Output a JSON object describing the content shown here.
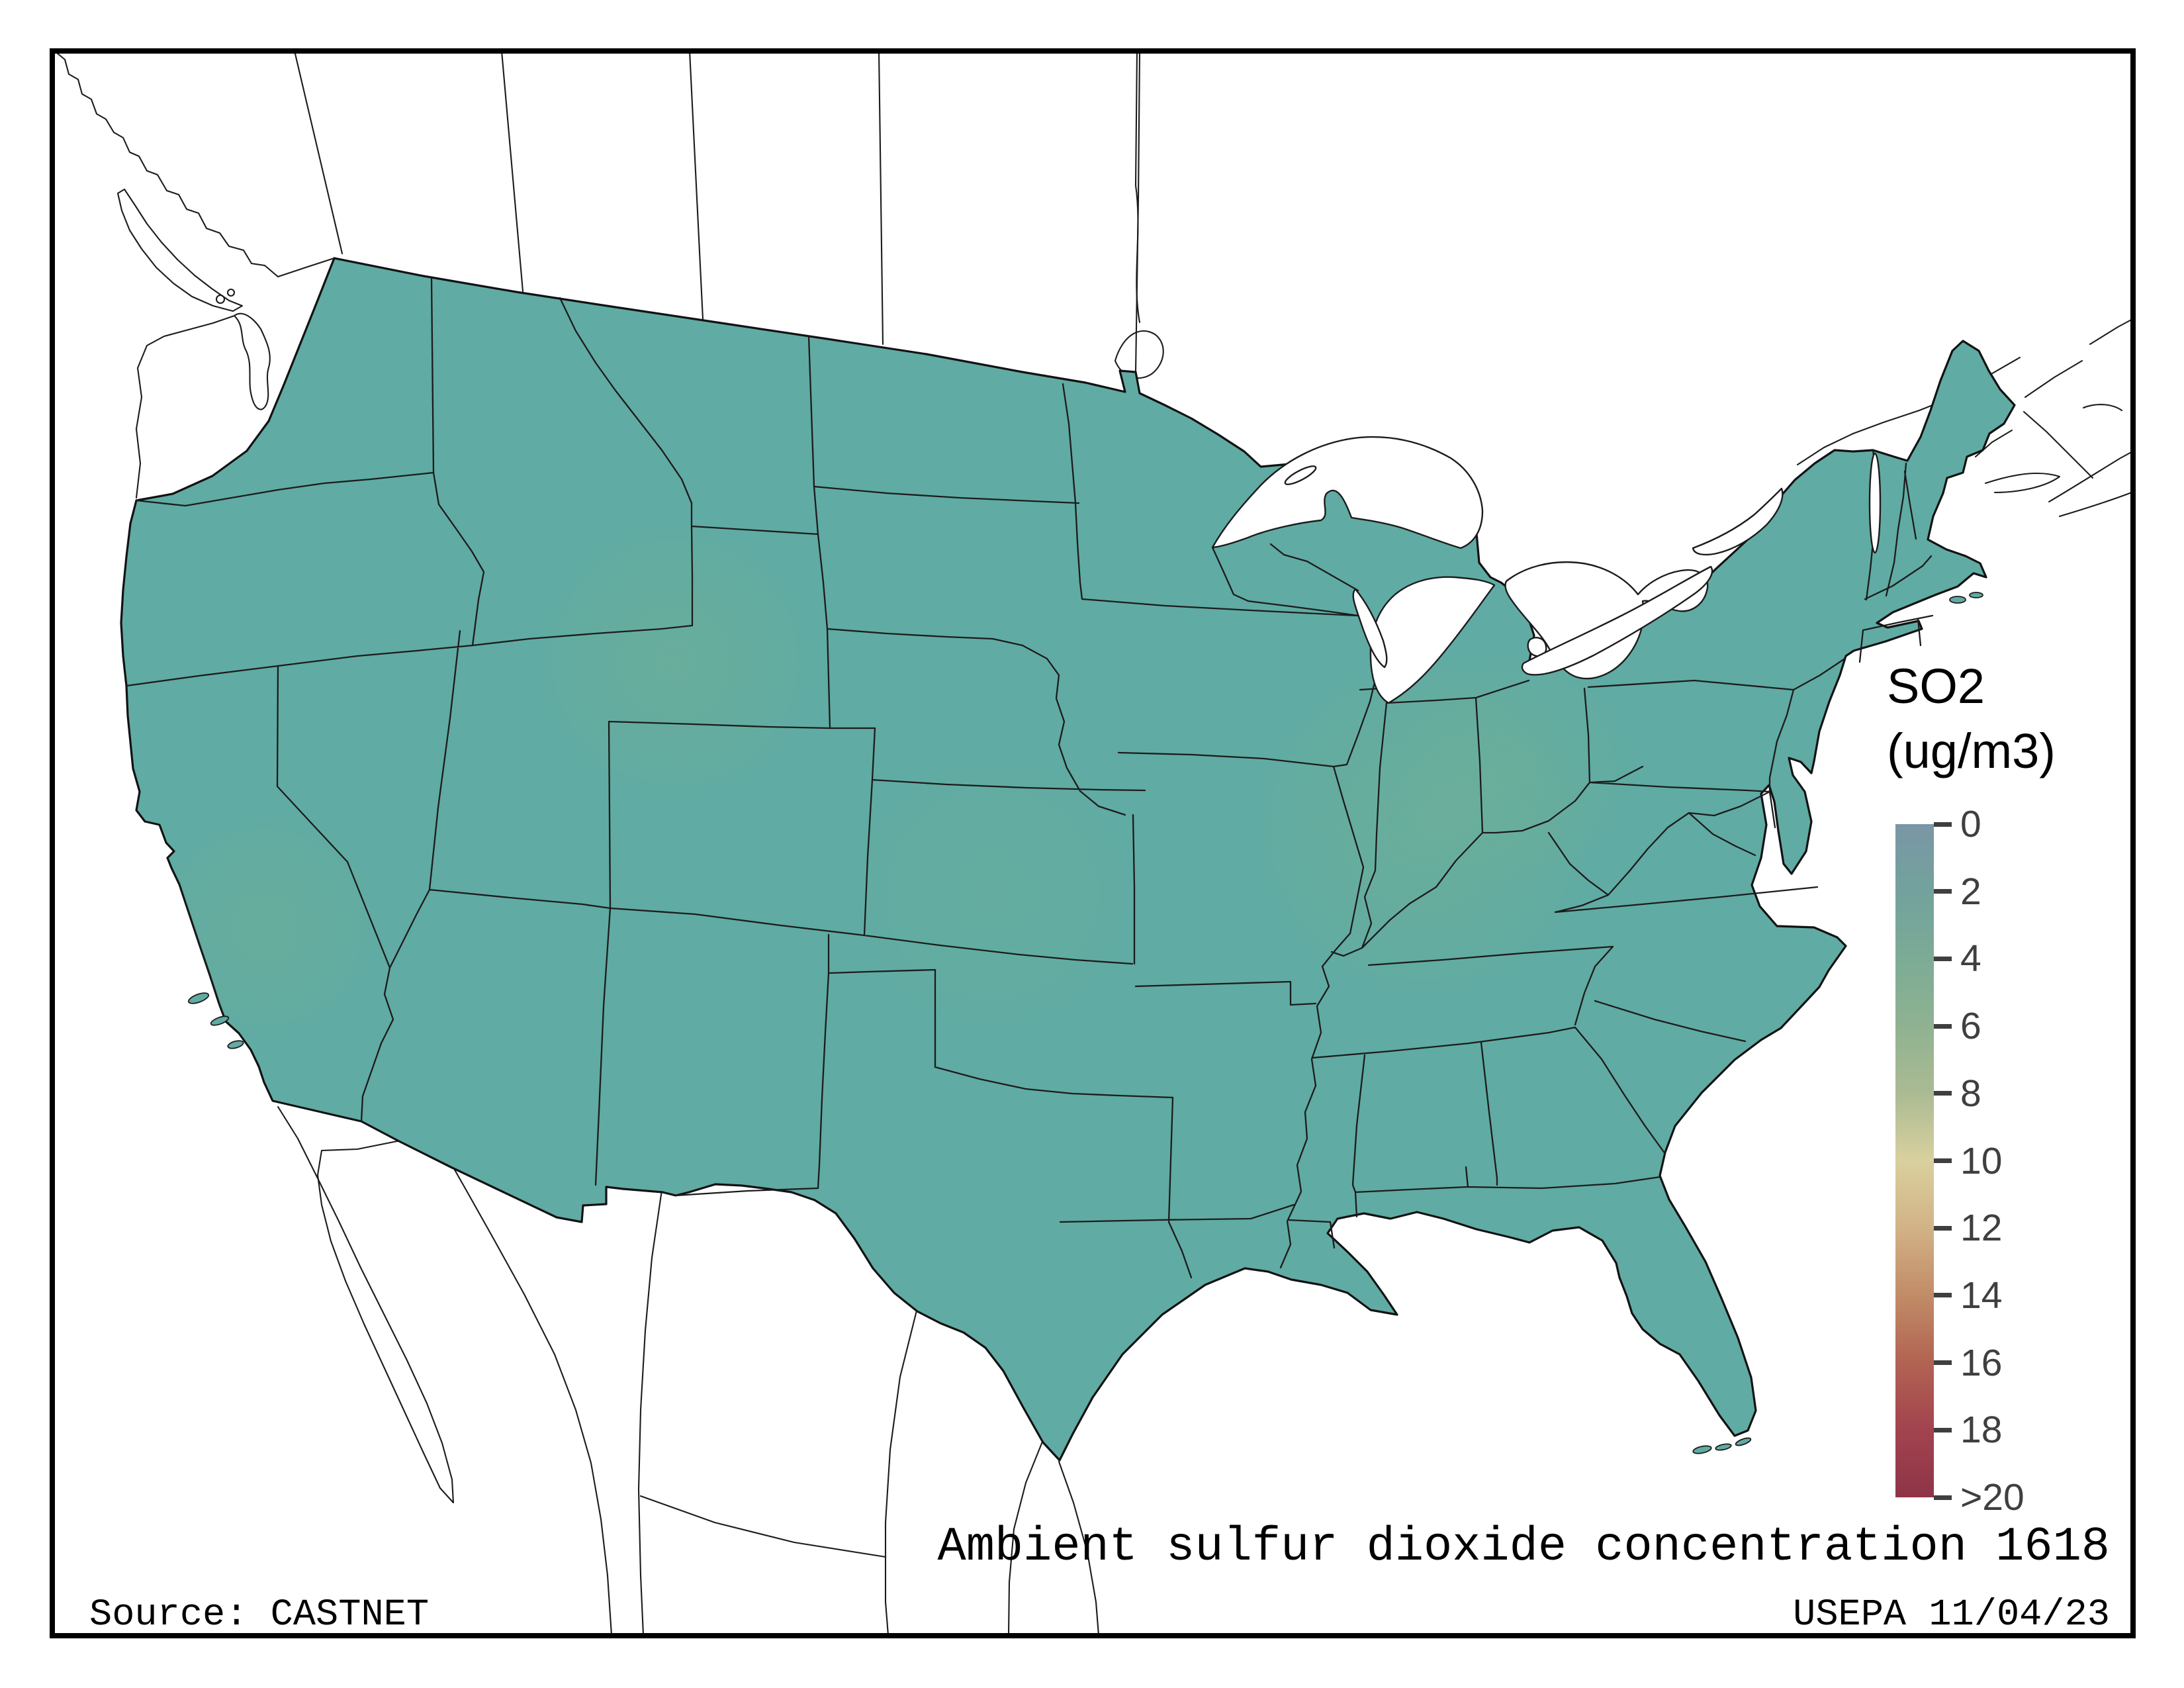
{
  "canvas": {
    "background": "#ffffff",
    "frame_color": "#000000",
    "text_color": "#000000"
  },
  "map": {
    "fill": "#60aba3",
    "patch_green": "#7fb489",
    "line": "#1c1c1c",
    "outline": "#121212",
    "water": "#ffffff"
  },
  "legend": {
    "title_line1": "SO2",
    "title_line2": "(ug/m3)",
    "title_color": "#000000",
    "tick_color": "#3f3f3f",
    "ticks": [
      "0",
      "2",
      "4",
      "6",
      "8",
      "10",
      "12",
      "14",
      "16",
      "18",
      ">20"
    ],
    "gradient": [
      "#7a96a5",
      "#73a29d",
      "#7cab96",
      "#8fb291",
      "#abbb93",
      "#d9d09e",
      "#d2b287",
      "#c18c67",
      "#b26352",
      "#a2434f",
      "#8e3448"
    ]
  },
  "footer": {
    "title": "Ambient sulfur dioxide concentration 1618",
    "source": "Source: CASTNET",
    "credit": "USEPA 11/04/23"
  },
  "chart_data": {
    "type": "choropleth_map",
    "title": "Ambient sulfur dioxide concentration 1618",
    "units": "ug/m3",
    "legend_title": "SO2 (ug/m3)",
    "colorbar_tick_labels": [
      "0",
      "2",
      "4",
      "6",
      "8",
      "10",
      "12",
      "14",
      "16",
      "18",
      ">20"
    ],
    "colorbar_orientation": "vertical, 0 at top, >20 at bottom",
    "region": "conterminous United States",
    "surface_value_range_shown_on_map": [
      1,
      4
    ],
    "source": "CASTNET",
    "credit": "USEPA 11/04/23"
  }
}
